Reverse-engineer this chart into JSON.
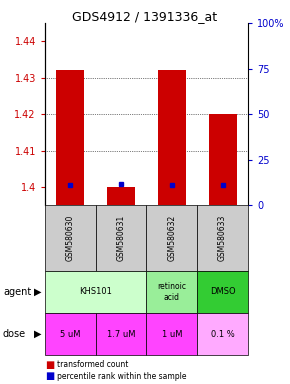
{
  "title": "GDS4912 / 1391336_at",
  "samples": [
    "GSM580630",
    "GSM580631",
    "GSM580632",
    "GSM580633"
  ],
  "red_values": [
    1.432,
    1.4,
    1.432,
    1.42
  ],
  "blue_values": [
    1.4005,
    1.4008,
    1.4005,
    1.4005
  ],
  "ylim_left": [
    1.395,
    1.445
  ],
  "ylim_right": [
    0,
    100
  ],
  "yticks_left": [
    1.4,
    1.41,
    1.42,
    1.43,
    1.44
  ],
  "yticks_right": [
    0,
    25,
    50,
    75,
    100
  ],
  "ytick_labels_left": [
    "1.4",
    "1.41",
    "1.42",
    "1.43",
    "1.44"
  ],
  "ytick_labels_right": [
    "0",
    "25",
    "50",
    "75",
    "100%"
  ],
  "agent_info": [
    [
      0,
      2,
      "KHS101",
      "#ccffcc"
    ],
    [
      2,
      3,
      "retinoic\nacid",
      "#99ee99"
    ],
    [
      3,
      4,
      "DMSO",
      "#33cc33"
    ]
  ],
  "dose_labels": [
    "5 uM",
    "1.7 uM",
    "1 uM",
    "0.1 %"
  ],
  "dose_colors": [
    "#ff44ff",
    "#ff44ff",
    "#ff44ff",
    "#ffaaff"
  ],
  "bar_color": "#cc0000",
  "blue_color": "#0000cc",
  "grid_color": "#888888",
  "sample_bg": "#cccccc",
  "left_axis_color": "#cc0000",
  "right_axis_color": "#0000cc",
  "grid_yticks": [
    1.41,
    1.42,
    1.43
  ],
  "bar_width": 0.55
}
